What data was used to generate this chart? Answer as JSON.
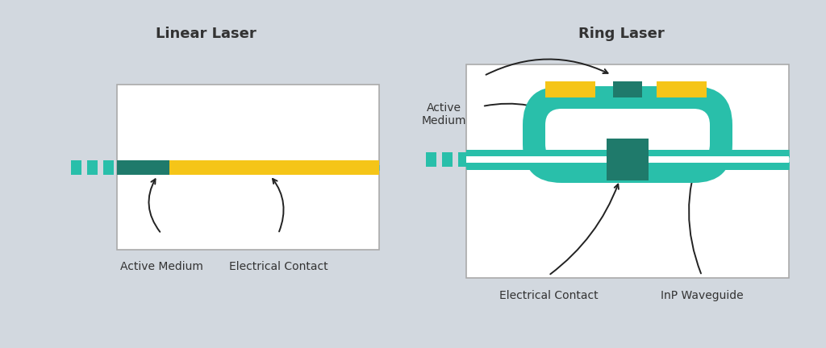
{
  "bg_color": "#d2d8df",
  "box_color": "#ffffff",
  "teal_dark": "#1f7a6b",
  "teal_bright": "#29bfaa",
  "yellow": "#f5c518",
  "text_color": "#333333",
  "title_left": "Linear Laser",
  "title_right": "Ring Laser",
  "label_active_medium_left": "Active Medium",
  "label_electrical_contact_left": "Electrical Contact",
  "label_active_medium_right": "Active\nMedium",
  "label_electrical_contact_right": "Electrical Contact",
  "label_inp_waveguide": "InP Waveguide",
  "fig_w": 10.24,
  "fig_h": 4.32
}
